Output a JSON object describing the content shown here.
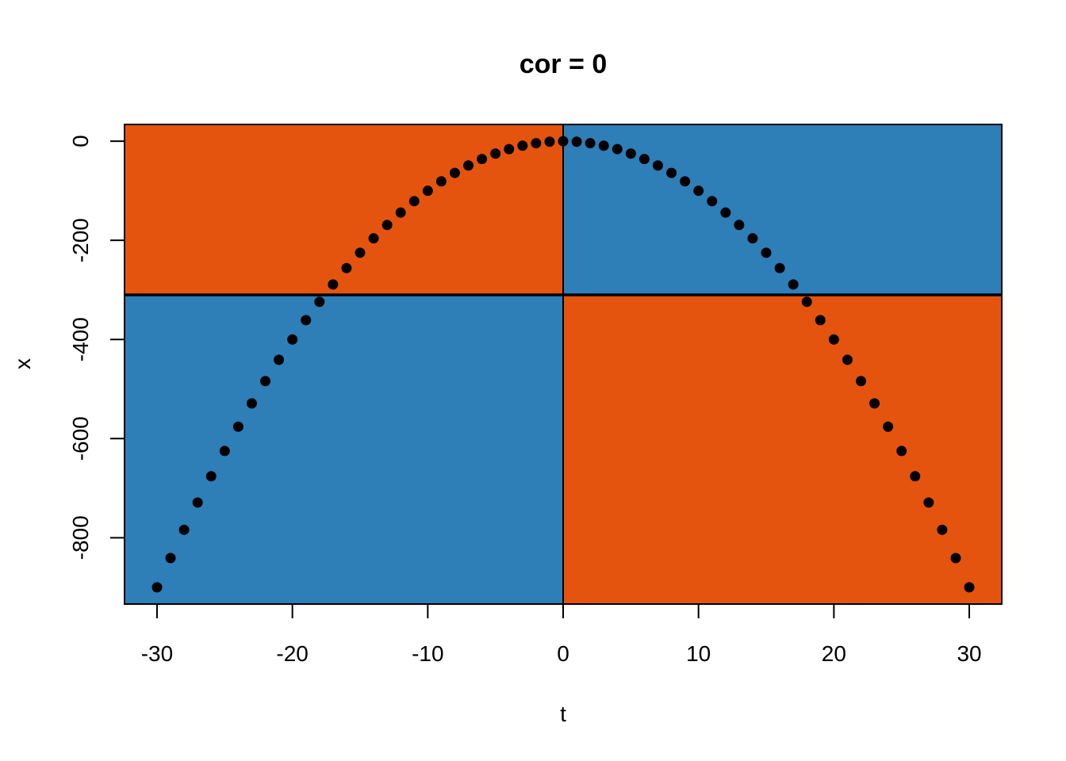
{
  "chart_data": {
    "type": "scatter",
    "title": "cor = 0",
    "xlabel": "t",
    "ylabel": "x",
    "xlim": [
      -32.4,
      32.4
    ],
    "ylim": [
      -933.8,
      33.8
    ],
    "x_ticks": [
      -30,
      -20,
      -10,
      0,
      10,
      20,
      30
    ],
    "y_ticks": [
      0,
      -200,
      -400,
      -600,
      -800
    ],
    "x_tick_labels": [
      "-30",
      "-20",
      "-10",
      "0",
      "10",
      "20",
      "30"
    ],
    "y_tick_labels": [
      "0",
      "-200",
      "-400",
      "-600",
      "-800"
    ],
    "mean_x": 0,
    "mean_y": -310,
    "quadrant_colors": {
      "positive": "#2E7EB8",
      "negative": "#E5540E"
    },
    "point_color": "#000000",
    "grid": false,
    "legend": "none",
    "x": [
      -30,
      -29,
      -28,
      -27,
      -26,
      -25,
      -24,
      -23,
      -22,
      -21,
      -20,
      -19,
      -18,
      -17,
      -16,
      -15,
      -14,
      -13,
      -12,
      -11,
      -10,
      -9,
      -8,
      -7,
      -6,
      -5,
      -4,
      -3,
      -2,
      -1,
      0,
      1,
      2,
      3,
      4,
      5,
      6,
      7,
      8,
      9,
      10,
      11,
      12,
      13,
      14,
      15,
      16,
      17,
      18,
      19,
      20,
      21,
      22,
      23,
      24,
      25,
      26,
      27,
      28,
      29,
      30
    ],
    "y": [
      -900,
      -841,
      -784,
      -729,
      -676,
      -625,
      -576,
      -529,
      -484,
      -441,
      -400,
      -361,
      -324,
      -289,
      -256,
      -225,
      -196,
      -169,
      -144,
      -121,
      -100,
      -81,
      -64,
      -49,
      -36,
      -25,
      -16,
      -9,
      -4,
      -1,
      0,
      -1,
      -4,
      -9,
      -16,
      -25,
      -36,
      -49,
      -64,
      -81,
      -100,
      -121,
      -144,
      -169,
      -196,
      -225,
      -256,
      -289,
      -324,
      -361,
      -400,
      -441,
      -484,
      -529,
      -576,
      -625,
      -676,
      -729,
      -784,
      -841,
      -900
    ]
  }
}
